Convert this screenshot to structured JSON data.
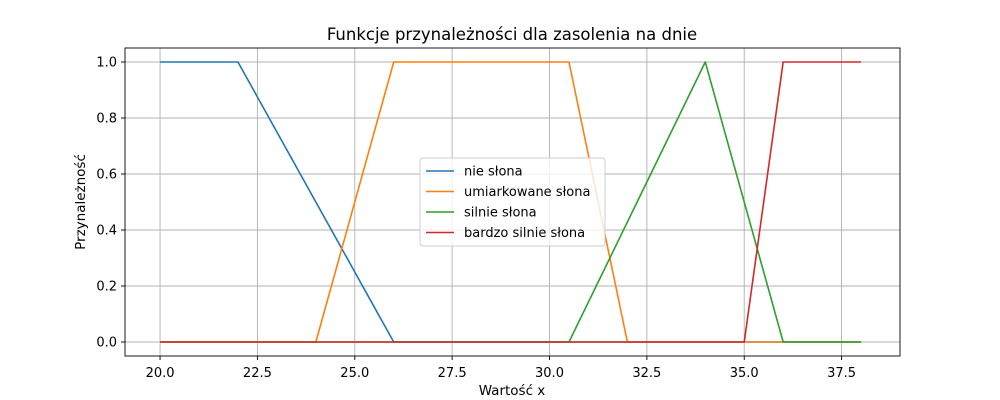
{
  "chart_data": {
    "type": "line",
    "title": "Funkcje przynależności dla zasolenia na dnie",
    "xlabel": "Wartość x",
    "ylabel": "Przynależność",
    "xlim": [
      19.1,
      39.0
    ],
    "ylim": [
      -0.05,
      1.05
    ],
    "xticks": [
      20.0,
      22.5,
      25.0,
      27.5,
      30.0,
      32.5,
      35.0,
      37.5
    ],
    "xtick_labels": [
      "20.0",
      "22.5",
      "25.0",
      "27.5",
      "30.0",
      "32.5",
      "35.0",
      "37.5"
    ],
    "yticks": [
      0.0,
      0.2,
      0.4,
      0.6,
      0.8,
      1.0
    ],
    "ytick_labels": [
      "0.0",
      "0.2",
      "0.4",
      "0.6",
      "0.8",
      "1.0"
    ],
    "grid": true,
    "legend_position": "center",
    "series": [
      {
        "name": "nie słona",
        "color": "#1f77b4",
        "x": [
          20,
          22,
          26,
          38
        ],
        "y": [
          1,
          1,
          0,
          0
        ]
      },
      {
        "name": "umiarkowane słona",
        "color": "#ff7f0e",
        "x": [
          20,
          24,
          26,
          30.5,
          32,
          38
        ],
        "y": [
          0,
          0,
          1,
          1,
          0,
          0
        ]
      },
      {
        "name": "silnie słona",
        "color": "#2ca02c",
        "x": [
          20,
          30.5,
          34,
          36,
          38
        ],
        "y": [
          0,
          0,
          1,
          0,
          0
        ]
      },
      {
        "name": "bardzo silnie słona",
        "color": "#d62728",
        "x": [
          20,
          35,
          36,
          38
        ],
        "y": [
          0,
          0,
          1,
          1
        ]
      }
    ]
  }
}
